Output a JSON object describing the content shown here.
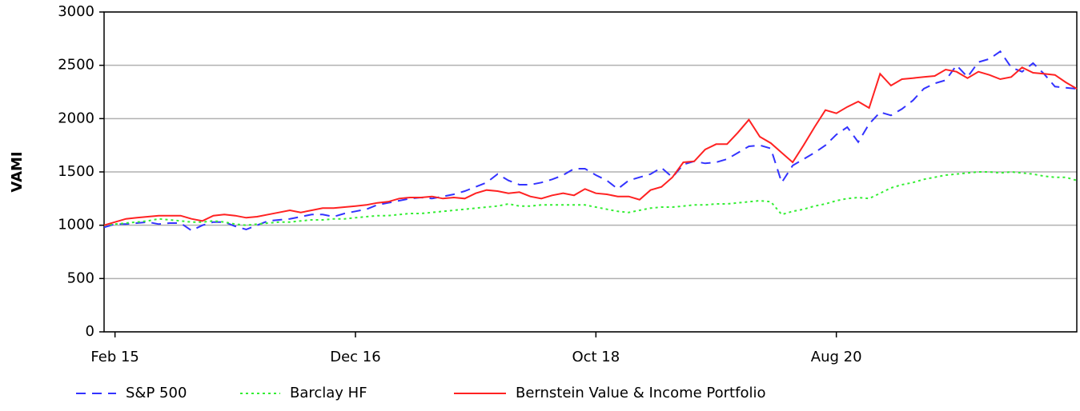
{
  "chart_data": {
    "type": "line",
    "y_label": "VAMI",
    "categories": [
      null,
      "Feb 15",
      null,
      null,
      null,
      null,
      null,
      null,
      null,
      null,
      null,
      null,
      null,
      null,
      null,
      null,
      null,
      null,
      null,
      null,
      null,
      null,
      null,
      "Dec 16",
      null,
      null,
      null,
      null,
      null,
      null,
      null,
      null,
      null,
      null,
      null,
      null,
      null,
      null,
      null,
      null,
      null,
      null,
      null,
      null,
      null,
      "Oct 18",
      null,
      null,
      null,
      null,
      null,
      null,
      null,
      null,
      null,
      null,
      null,
      null,
      null,
      null,
      null,
      null,
      null,
      null,
      null,
      null,
      null,
      "Aug 20",
      null,
      null,
      null,
      null,
      null,
      null,
      null,
      null,
      null,
      null,
      null,
      null,
      null,
      null,
      null,
      null,
      null,
      null,
      null,
      null,
      null,
      null
    ],
    "series": [
      {
        "name": "S&P 500",
        "color": "#3333ff",
        "dash": "dashed",
        "values": [
          980,
          1010,
          1010,
          1020,
          1030,
          1010,
          1020,
          1020,
          950,
          1000,
          1030,
          1030,
          990,
          960,
          1000,
          1040,
          1050,
          1060,
          1080,
          1100,
          1100,
          1080,
          1110,
          1130,
          1150,
          1190,
          1210,
          1230,
          1250,
          1260,
          1250,
          1270,
          1290,
          1320,
          1360,
          1400,
          1480,
          1420,
          1380,
          1380,
          1400,
          1430,
          1470,
          1530,
          1530,
          1470,
          1420,
          1340,
          1420,
          1450,
          1480,
          1540,
          1450,
          1570,
          1600,
          1580,
          1590,
          1620,
          1680,
          1740,
          1750,
          1720,
          1400,
          1560,
          1620,
          1680,
          1750,
          1850,
          1920,
          1780,
          1950,
          2060,
          2030,
          2090,
          2170,
          2280,
          2330,
          2360,
          2500,
          2390,
          2530,
          2560,
          2630,
          2480,
          2440,
          2520,
          2420,
          2300,
          2290,
          2280
        ]
      },
      {
        "name": "Barclay HF",
        "color": "#33ee33",
        "dash": "dotted",
        "values": [
          1000,
          1010,
          1020,
          1030,
          1040,
          1060,
          1050,
          1040,
          1030,
          1030,
          1040,
          1030,
          1010,
          1000,
          1010,
          1020,
          1030,
          1030,
          1040,
          1050,
          1050,
          1060,
          1060,
          1070,
          1080,
          1090,
          1090,
          1100,
          1110,
          1110,
          1120,
          1130,
          1140,
          1150,
          1160,
          1170,
          1180,
          1200,
          1180,
          1180,
          1190,
          1190,
          1190,
          1190,
          1190,
          1170,
          1150,
          1130,
          1120,
          1140,
          1160,
          1170,
          1170,
          1180,
          1190,
          1190,
          1200,
          1200,
          1210,
          1220,
          1230,
          1220,
          1100,
          1130,
          1150,
          1180,
          1200,
          1230,
          1250,
          1260,
          1250,
          1300,
          1350,
          1380,
          1400,
          1430,
          1450,
          1470,
          1480,
          1490,
          1500,
          1500,
          1490,
          1500,
          1490,
          1480,
          1460,
          1450,
          1450,
          1420
        ]
      },
      {
        "name": "Bernstein Value & Income Portfolio",
        "color": "#ff2222",
        "dash": "solid",
        "values": [
          1000,
          1030,
          1060,
          1070,
          1080,
          1090,
          1090,
          1090,
          1060,
          1040,
          1090,
          1100,
          1090,
          1070,
          1080,
          1100,
          1120,
          1140,
          1120,
          1140,
          1160,
          1160,
          1170,
          1180,
          1190,
          1210,
          1220,
          1250,
          1260,
          1260,
          1270,
          1250,
          1260,
          1250,
          1300,
          1330,
          1320,
          1300,
          1310,
          1270,
          1250,
          1280,
          1300,
          1280,
          1340,
          1300,
          1290,
          1270,
          1270,
          1240,
          1330,
          1360,
          1450,
          1590,
          1600,
          1710,
          1760,
          1760,
          1870,
          1990,
          1830,
          1770,
          1680,
          1590,
          1750,
          1920,
          2080,
          2050,
          2110,
          2160,
          2100,
          2420,
          2310,
          2370,
          2380,
          2390,
          2400,
          2460,
          2440,
          2380,
          2440,
          2410,
          2370,
          2390,
          2480,
          2430,
          2420,
          2410,
          2340,
          2280
        ]
      }
    ],
    "ylim": [
      0,
      3000
    ],
    "yticks": [
      0,
      500,
      1000,
      1500,
      2000,
      2500,
      3000
    ],
    "grid": true
  }
}
